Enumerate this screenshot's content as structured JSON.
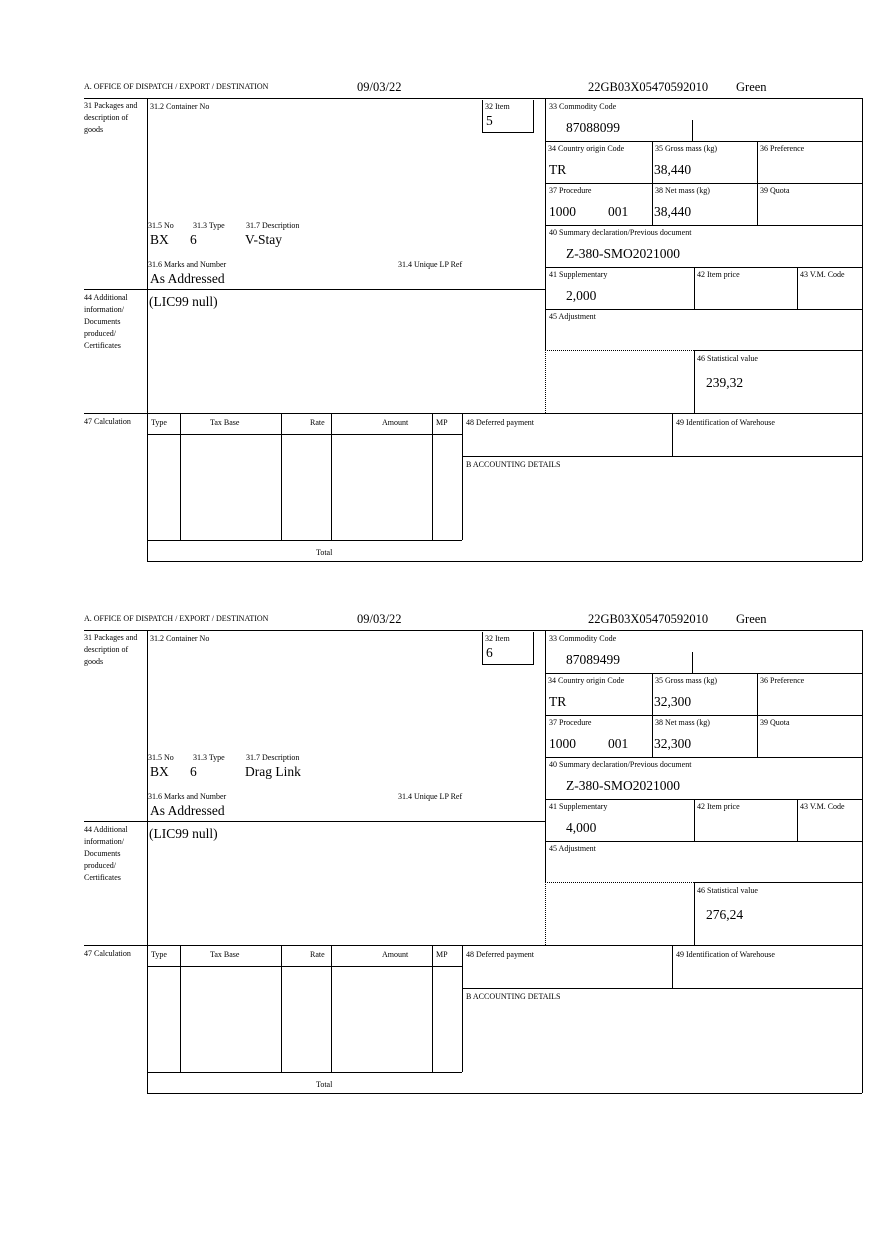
{
  "labels": {
    "office": "A.  OFFICE OF DISPATCH / EXPORT / DESTINATION",
    "packages": "31 Packages and description of goods",
    "container": "31.2 Container No",
    "item": "32 Item",
    "no": "31.5 No",
    "type": "31.3 Type",
    "description": "31.7 Description",
    "marks": "31.6 Marks and Number",
    "unique_lp": "31.4 Unique LP Ref",
    "additional": "44 Additional information/ Documents produced/ Certificates",
    "commodity": "33 Commodity Code",
    "country": "34 Country origin Code",
    "gross": "35 Gross mass (kg)",
    "preference": "36 Preference",
    "procedure": "37 Procedure",
    "net": "38 Net mass (kg)",
    "quota": "39 Quota",
    "summary": "40 Summary declaration/Previous document",
    "supplementary": "41 Supplementary",
    "item_price": "42 Item price",
    "vm_code": "43 V.M. Code",
    "adjustment": "45 Adjustment",
    "stat_value": "46 Statistical value",
    "calculation": "47 Calculation",
    "col_type": "Type",
    "col_tax_base": "Tax Base",
    "col_rate": "Rate",
    "col_amount": "Amount",
    "col_mp": "MP",
    "deferred": "48 Deferred payment",
    "warehouse": "49 Identification of Warehouse",
    "accounting": "B ACCOUNTING DETAILS",
    "total": "Total"
  },
  "forms": [
    {
      "date": "09/03/22",
      "reference": "22GB03X05470592010",
      "channel": "Green",
      "item": "5",
      "package_kind": "BX",
      "package_count": "6",
      "description": "V-Stay",
      "marks": "As Addressed",
      "additional": "(LIC99 null)",
      "commodity_code": "87088099",
      "country": "TR",
      "gross_mass": "38,440",
      "procedure_a": "1000",
      "procedure_b": "001",
      "net_mass": "38,440",
      "summary_doc": "Z-380-SMO2021000",
      "supplementary": "2,000",
      "stat_value": "239,32"
    },
    {
      "date": "09/03/22",
      "reference": "22GB03X05470592010",
      "channel": "Green",
      "item": "6",
      "package_kind": "BX",
      "package_count": "6",
      "description": "Drag Link",
      "marks": "As Addressed",
      "additional": "(LIC99 null)",
      "commodity_code": "87089499",
      "country": "TR",
      "gross_mass": "32,300",
      "procedure_a": "1000",
      "procedure_b": "001",
      "net_mass": "32,300",
      "summary_doc": "Z-380-SMO2021000",
      "supplementary": "4,000",
      "stat_value": "276,24"
    }
  ]
}
